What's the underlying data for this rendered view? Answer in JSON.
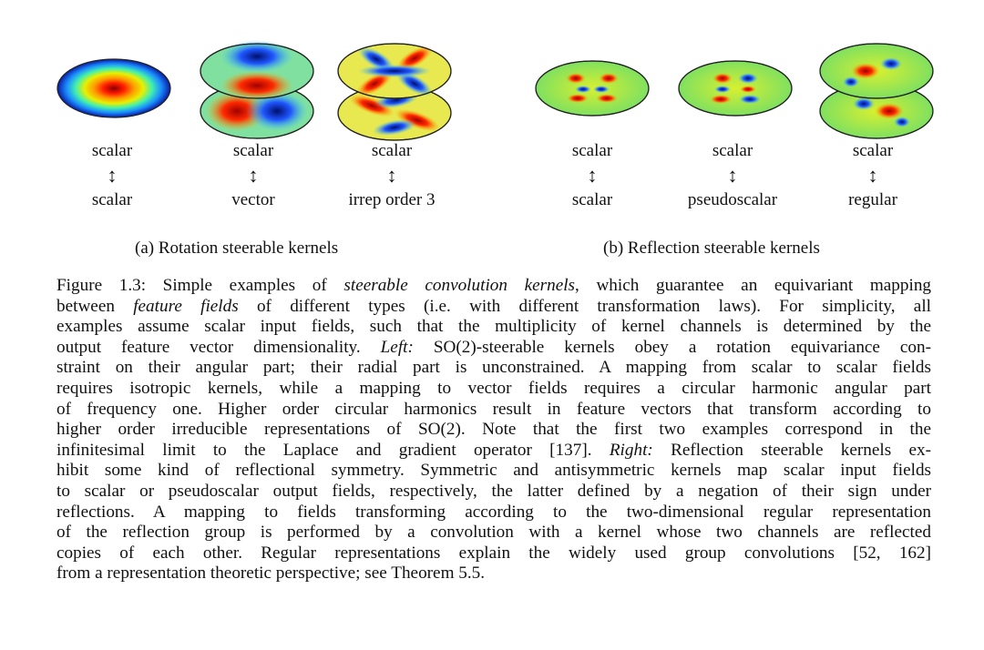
{
  "panels": [
    {
      "top": "scalar",
      "bottom": "scalar"
    },
    {
      "top": "scalar",
      "bottom": "vector"
    },
    {
      "top": "scalar",
      "bottom": "irrep order 3"
    },
    {
      "top": "scalar",
      "bottom": "scalar"
    },
    {
      "top": "scalar",
      "bottom": "pseudoscalar"
    },
    {
      "top": "scalar",
      "bottom": "regular"
    }
  ],
  "arrow": "↕",
  "subcaptions": {
    "a": "(a) Rotation steerable kernels",
    "b": "(b) Reflection steerable kernels"
  },
  "caption": {
    "l1a": "Figure 1.3: Simple examples of ",
    "l1b": "steerable convolution kernels",
    "l1c": ", which guarantee an equivariant mapping",
    "l2a": "between ",
    "l2b": "feature fields",
    "l2c": " of different types (i.e.  with different transformation laws).  For simplicity, all",
    "l3": "examples assume scalar input fields, such that the multiplicity of kernel channels is determined by the",
    "l4a": "output feature vector dimensionality.  ",
    "l4b": "Left:",
    "l4c": " SO(2)-steerable kernels obey a rotation equivariance con-",
    "l5": "straint on their angular part; their radial part is unconstrained.  A mapping from scalar to scalar fields",
    "l6": "requires isotropic kernels, while a mapping to vector fields requires a circular harmonic angular part",
    "l7": "of frequency one. Higher order circular harmonics result in feature vectors that transform according to",
    "l8": "higher order irreducible representations of SO(2).  Note that the first two examples correspond in the",
    "l9a": "infinitesimal limit to the Laplace and gradient operator [137].  ",
    "l9b": "Right:",
    "l9c": " Reflection steerable kernels ex-",
    "l10": "hibit some kind of reflectional symmetry. Symmetric and antisymmetric kernels map scalar input fields",
    "l11": "to scalar or pseudoscalar output fields, respectively, the latter defined by a negation of their sign under",
    "l12": "reflections.  A mapping to fields transforming according to the two-dimensional regular representation",
    "l13": "of the reflection group is performed by a convolution with a kernel whose two channels are reflected",
    "l14": "copies of each other.  Regular representations explain the widely used group convolutions [52, 162]",
    "l15": "from a representation theoretic perspective; see Theorem 5.5."
  }
}
